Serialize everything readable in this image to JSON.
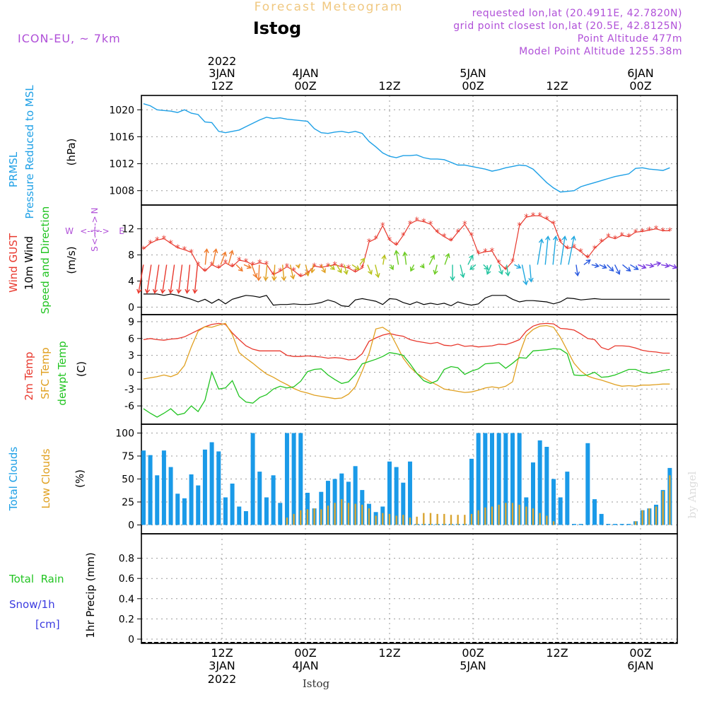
{
  "header": {
    "title_faded": "Forecast Meteogram",
    "station": "Istog",
    "model": "ICON-EU, ~ 7km",
    "requested": "requested lon,lat (20.4911E, 42.7820N)",
    "grid_point": "grid point closest lon,lat (20.5E, 42.8125N)",
    "point_altitude": "Point Altitude 477m",
    "model_altitude": "Model Point Altitude 1255.38m"
  },
  "top_time_labels": [
    {
      "l1": "2022",
      "l2": "3JAN",
      "l3": "12Z"
    },
    {
      "l1": "",
      "l2": "4JAN",
      "l3": "00Z"
    },
    {
      "l1": "",
      "l2": "",
      "l3": "12Z"
    },
    {
      "l1": "",
      "l2": "5JAN",
      "l3": "00Z"
    },
    {
      "l1": "",
      "l2": "",
      "l3": "12Z"
    },
    {
      "l1": "",
      "l2": "6JAN",
      "l3": "00Z"
    }
  ],
  "bottom_time_labels": [
    {
      "l1": "12Z",
      "l2": "3JAN",
      "l3": "2022"
    },
    {
      "l1": "00Z",
      "l2": "4JAN",
      "l3": ""
    },
    {
      "l1": "12Z",
      "l2": "",
      "l3": ""
    },
    {
      "l1": "00Z",
      "l2": "5JAN",
      "l3": ""
    },
    {
      "l1": "12Z",
      "l2": "",
      "l3": ""
    },
    {
      "l1": "00Z",
      "l2": "6JAN",
      "l3": ""
    }
  ],
  "footer_station": "Istog",
  "watermark": "by Angel",
  "panels": {
    "pressure": {
      "label1": "PRMSL",
      "label2": "Pressure Reduced to MSL",
      "unit": "(hPa)"
    },
    "wind": {
      "label_gust": "Wind GUST",
      "label_10m": "10m Wind",
      "label_sd": "Speed and Direction",
      "unit": "(m/s)",
      "compass_n": "N",
      "compass_s": "S",
      "compass_w": "W",
      "compass_e": "E"
    },
    "temp": {
      "label_2m": "2m Temp",
      "label_sfc": "SFC Temp",
      "label_dew": "dewpt Temp",
      "unit": "(C)"
    },
    "clouds": {
      "label_total": "Total Clouds",
      "label_low": "Low Clouds",
      "unit": "(%)"
    },
    "precip": {
      "label_rain": "Total  Rain",
      "label_snow": "Snow/1h",
      "label_cm": "[cm]",
      "unit": "1hr Precip (mm)"
    }
  },
  "colors": {
    "pressure": "#1ea0e6",
    "gust": "#e8382d",
    "wind10m": "#000000",
    "temp2m": "#e8382d",
    "sfc": "#e0a020",
    "dew": "#22c422",
    "total_cloud": "#1a9ae8",
    "low_cloud": "#d9a532",
    "purple": "#b050d8",
    "green_label": "#22c422",
    "snow_label": "#3a3ae0"
  },
  "chart_data": [
    {
      "type": "line",
      "name": "pressure",
      "x_hours": [
        0,
        1,
        2,
        3,
        4,
        5,
        6,
        7,
        8,
        9,
        10,
        11,
        12,
        13,
        14,
        15,
        16,
        17,
        18,
        19,
        20,
        21,
        22,
        23,
        24,
        25,
        26,
        27,
        28,
        29,
        30,
        31,
        32,
        33,
        34,
        35,
        36,
        37,
        38,
        39,
        40,
        41,
        42,
        43,
        44,
        45,
        46,
        47,
        48,
        49,
        50,
        51,
        52,
        53,
        54,
        55,
        56,
        57,
        58,
        59,
        60,
        61,
        62,
        63,
        64,
        65,
        66,
        67,
        68,
        69,
        70,
        71,
        72,
        73,
        74,
        75,
        76,
        77
      ],
      "values": [
        1020.9,
        1020.6,
        1020.0,
        1019.9,
        1019.8,
        1019.6,
        1020.0,
        1019.5,
        1019.3,
        1018.2,
        1018.1,
        1016.8,
        1016.6,
        1016.8,
        1017.0,
        1017.5,
        1018.0,
        1018.5,
        1018.9,
        1018.7,
        1018.8,
        1018.6,
        1018.5,
        1018.4,
        1018.3,
        1017.2,
        1016.6,
        1016.5,
        1016.7,
        1016.8,
        1016.6,
        1016.8,
        1016.5,
        1015.3,
        1014.5,
        1013.6,
        1013.1,
        1012.9,
        1013.2,
        1013.2,
        1013.3,
        1012.9,
        1012.7,
        1012.7,
        1012.6,
        1012.2,
        1011.8,
        1011.8,
        1011.6,
        1011.4,
        1011.2,
        1010.9,
        1011.1,
        1011.4,
        1011.6,
        1011.8,
        1011.7,
        1011.2,
        1010.2,
        1009.2,
        1008.4,
        1007.8,
        1007.9,
        1008.0,
        1008.6,
        1008.9,
        1009.2,
        1009.5,
        1009.8,
        1010.1,
        1010.3,
        1010.5,
        1011.3,
        1011.4,
        1011.2,
        1011.1,
        1011.0,
        1011.4
      ],
      "ylim": [
        1006.5,
        1021.5
      ],
      "yticks": [
        1008,
        1012,
        1016,
        1020
      ]
    },
    {
      "type": "line",
      "name": "wind",
      "x_hours": [
        0,
        1,
        2,
        3,
        4,
        5,
        6,
        7,
        8,
        9,
        10,
        11,
        12,
        13,
        14,
        15,
        16,
        17,
        18,
        19,
        20,
        21,
        22,
        23,
        24,
        25,
        26,
        27,
        28,
        29,
        30,
        31,
        32,
        33,
        34,
        35,
        36,
        37,
        38,
        39,
        40,
        41,
        42,
        43,
        44,
        45,
        46,
        47,
        48,
        49,
        50,
        51,
        52,
        53,
        54,
        55,
        56,
        57,
        58,
        59,
        60,
        61,
        62,
        63,
        64,
        65,
        66,
        67,
        68,
        69,
        70,
        71,
        72,
        73,
        74,
        75,
        76,
        77
      ],
      "gust": [
        8.9,
        9.8,
        10.3,
        10.5,
        9.8,
        9.1,
        8.8,
        8.4,
        6.5,
        5.5,
        6.5,
        6.0,
        6.8,
        6.2,
        7.2,
        7.0,
        6.5,
        6.8,
        6.6,
        5.0,
        5.5,
        6.2,
        5.6,
        4.7,
        5.2,
        6.3,
        6.1,
        6.3,
        6.5,
        6.2,
        6.0,
        5.4,
        6.0,
        10.0,
        10.5,
        12.5,
        10.3,
        9.5,
        11.0,
        12.8,
        13.3,
        13.1,
        12.7,
        11.5,
        10.8,
        10.2,
        11.5,
        12.7,
        11.0,
        8.2,
        8.5,
        8.6,
        6.8,
        5.8,
        7.0,
        12.5,
        13.8,
        14.0,
        14.0,
        13.5,
        12.8,
        10.0,
        9.0,
        9.2,
        8.5,
        7.6,
        9.0,
        10.0,
        10.8,
        10.5,
        11.0,
        10.8,
        11.5,
        11.6,
        11.8,
        12.0,
        11.7,
        11.7
      ],
      "wind10m": [
        2.0,
        2.0,
        2.0,
        1.8,
        2.0,
        1.8,
        1.5,
        1.2,
        0.8,
        1.2,
        0.6,
        1.2,
        0.5,
        1.2,
        1.5,
        1.8,
        1.7,
        1.5,
        1.8,
        0.3,
        0.4,
        0.4,
        0.5,
        0.4,
        0.4,
        0.5,
        0.7,
        1.1,
        0.8,
        0.2,
        0.1,
        1.1,
        1.3,
        1.1,
        0.9,
        0.4,
        1.3,
        1.2,
        0.7,
        0.4,
        0.8,
        0.4,
        0.6,
        0.4,
        0.6,
        0.2,
        0.8,
        0.5,
        0.3,
        0.5,
        1.4,
        1.8,
        1.8,
        1.8,
        1.2,
        0.8,
        1.0,
        1.0,
        0.9,
        0.8,
        0.5,
        0.8,
        1.4,
        1.3,
        1.1,
        1.2,
        1.3,
        1.2,
        1.2,
        1.2,
        1.2,
        1.2,
        1.2,
        1.2,
        1.2,
        1.2,
        1.2,
        1.2
      ],
      "ylim": [
        -0.5,
        15
      ],
      "yticks": [
        0,
        4,
        8,
        12
      ]
    },
    {
      "type": "line",
      "name": "temperature",
      "x_hours": [
        0,
        1,
        2,
        3,
        4,
        5,
        6,
        7,
        8,
        9,
        10,
        11,
        12,
        13,
        14,
        15,
        16,
        17,
        18,
        19,
        20,
        21,
        22,
        23,
        24,
        25,
        26,
        27,
        28,
        29,
        30,
        31,
        32,
        33,
        34,
        35,
        36,
        37,
        38,
        39,
        40,
        41,
        42,
        43,
        44,
        45,
        46,
        47,
        48,
        49,
        50,
        51,
        52,
        53,
        54,
        55,
        56,
        57,
        58,
        59,
        60,
        61,
        62,
        63,
        64,
        65,
        66,
        67,
        68,
        69,
        70,
        71,
        72,
        73,
        74,
        75,
        76,
        77
      ],
      "t2m": [
        5.8,
        6.0,
        5.8,
        5.7,
        5.9,
        6.0,
        6.3,
        6.9,
        7.5,
        8.1,
        8.5,
        8.7,
        8.5,
        7.0,
        5.8,
        4.7,
        4.1,
        3.8,
        3.8,
        3.8,
        3.8,
        3.0,
        2.8,
        2.8,
        2.9,
        2.8,
        2.7,
        2.5,
        2.6,
        2.5,
        2.2,
        2.3,
        3.3,
        5.5,
        6.1,
        6.6,
        6.9,
        6.6,
        6.4,
        5.8,
        5.5,
        5.3,
        5.1,
        5.3,
        4.8,
        4.7,
        5.0,
        4.6,
        4.7,
        4.5,
        4.6,
        4.7,
        5.0,
        4.9,
        5.3,
        5.8,
        7.3,
        8.2,
        8.6,
        8.7,
        8.6,
        7.8,
        7.7,
        7.5,
        6.8,
        6.0,
        5.8,
        4.4,
        4.0,
        4.7,
        4.7,
        4.6,
        4.3,
        3.9,
        3.7,
        3.6,
        3.4,
        3.4
      ],
      "sfc": [
        -1.2,
        -1.0,
        -0.8,
        -0.5,
        -0.8,
        -0.3,
        1.2,
        4.5,
        7.3,
        8.1,
        8.0,
        8.4,
        8.7,
        6.7,
        3.5,
        2.5,
        1.6,
        0.6,
        -0.3,
        -0.9,
        -1.6,
        -2.2,
        -2.9,
        -3.4,
        -3.7,
        -4.1,
        -4.3,
        -4.5,
        -4.7,
        -4.6,
        -3.9,
        -2.6,
        0.2,
        3.3,
        7.7,
        8.0,
        7.2,
        4.9,
        2.5,
        0.9,
        -0.2,
        -1.0,
        -1.7,
        -2.3,
        -3.0,
        -3.2,
        -3.4,
        -3.6,
        -3.5,
        -3.2,
        -2.8,
        -2.6,
        -2.8,
        -2.5,
        -1.7,
        3.2,
        6.5,
        7.6,
        8.2,
        8.3,
        8.0,
        6.2,
        3.9,
        1.6,
        0.2,
        -0.7,
        -1.1,
        -1.4,
        -1.8,
        -2.2,
        -2.5,
        -2.4,
        -2.5,
        -2.3,
        -2.3,
        -2.2,
        -2.1,
        -2.1
      ],
      "dew": [
        -6.5,
        -7.3,
        -8.0,
        -7.3,
        -6.5,
        -7.6,
        -7.3,
        -6.0,
        -7.0,
        -5.0,
        0.0,
        -3.0,
        -2.8,
        -1.5,
        -4.3,
        -5.3,
        -5.5,
        -4.5,
        -4.0,
        -3.0,
        -2.5,
        -2.8,
        -2.6,
        -1.6,
        0.1,
        0.5,
        0.6,
        -0.5,
        -1.3,
        -2.0,
        -1.7,
        -0.4,
        1.5,
        1.9,
        2.3,
        2.8,
        3.5,
        3.3,
        3.0,
        1.5,
        -0.2,
        -1.5,
        -2.0,
        -1.5,
        0.5,
        1.0,
        0.8,
        -0.4,
        0.2,
        0.6,
        1.5,
        1.6,
        1.7,
        0.7,
        1.6,
        2.6,
        2.5,
        3.8,
        3.9,
        4.0,
        4.2,
        4.1,
        3.3,
        -0.5,
        -0.6,
        -0.5,
        0.0,
        -0.9,
        -0.8,
        -0.5,
        0.0,
        0.5,
        0.5,
        0.0,
        -0.2,
        0.0,
        0.3,
        0.5
      ],
      "ylim": [
        -8.5,
        9.5
      ],
      "yticks": [
        -6,
        -3,
        0,
        3,
        6,
        9
      ]
    },
    {
      "type": "bar",
      "name": "clouds",
      "x_hours": [
        0,
        1,
        2,
        3,
        4,
        5,
        6,
        7,
        8,
        9,
        10,
        11,
        12,
        13,
        14,
        15,
        16,
        17,
        18,
        19,
        20,
        21,
        22,
        23,
        24,
        25,
        26,
        27,
        28,
        29,
        30,
        31,
        32,
        33,
        34,
        35,
        36,
        37,
        38,
        39,
        40,
        41,
        42,
        43,
        44,
        45,
        46,
        47,
        48,
        49,
        50,
        51,
        52,
        53,
        54,
        55,
        56,
        57,
        58,
        59,
        60,
        61,
        62,
        63,
        64,
        65,
        66,
        67,
        68,
        69,
        70,
        71,
        72,
        73,
        74,
        75,
        76,
        77
      ],
      "total": [
        81,
        76,
        54,
        81,
        63,
        34,
        29,
        55,
        43,
        82,
        90,
        80,
        30,
        45,
        20,
        15,
        100,
        58,
        30,
        54,
        24,
        100,
        100,
        100,
        35,
        18,
        36,
        48,
        50,
        56,
        47,
        64,
        38,
        23,
        14,
        20,
        69,
        63,
        46,
        69,
        0,
        0,
        0,
        0,
        0,
        0,
        0,
        0,
        72,
        100,
        100,
        100,
        100,
        100,
        100,
        100,
        30,
        68,
        92,
        85,
        50,
        30,
        58,
        0,
        0,
        89,
        28,
        12,
        0,
        0,
        0,
        0,
        4,
        16,
        18,
        22,
        38,
        62
      ],
      "low": [
        0,
        0,
        0,
        0,
        0,
        0,
        0,
        0,
        0,
        0,
        0,
        0,
        0,
        0,
        0,
        0,
        0,
        0,
        0,
        0,
        0,
        8,
        12,
        16,
        17,
        18,
        17,
        21,
        24,
        28,
        24,
        23,
        22,
        18,
        10,
        13,
        12,
        10,
        11,
        8,
        9,
        13,
        13,
        12,
        12,
        11,
        11,
        11,
        12,
        16,
        19,
        20,
        22,
        24,
        24,
        22,
        20,
        18,
        13,
        10,
        4,
        0,
        0,
        0,
        0,
        0,
        0,
        0,
        0,
        0,
        0,
        0,
        4,
        16,
        18,
        20,
        37,
        54
      ],
      "ylim": [
        -5,
        105
      ],
      "yticks": [
        0,
        25,
        50,
        75,
        100
      ]
    },
    {
      "type": "bar",
      "name": "precip",
      "ylim": [
        0,
        1.0
      ],
      "yticks": [
        0,
        0.2,
        0.4,
        0.6,
        0.8
      ],
      "ytick_labels": [
        "0",
        "0.2",
        "0.4",
        "0.6",
        "0.8"
      ],
      "values": []
    }
  ]
}
